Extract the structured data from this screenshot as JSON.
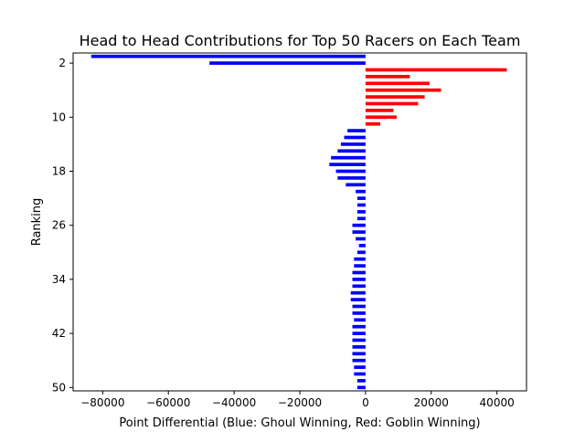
{
  "chart_data": {
    "type": "bar",
    "orientation": "horizontal",
    "title": "Head to Head Contributions for Top 50 Racers on Each Team",
    "xlabel": "Point Differential (Blue: Ghoul Winning, Red: Goblin Winning)",
    "ylabel": "Ranking",
    "xlim": [
      -89000,
      49000
    ],
    "ylim": [
      50.5,
      0.5
    ],
    "x_ticks": [
      -80000,
      -60000,
      -40000,
      -20000,
      0,
      20000,
      40000
    ],
    "x_tick_labels": [
      "−80000",
      "−60000",
      "−40000",
      "−20000",
      "0",
      "20000",
      "40000"
    ],
    "y_ticks": [
      2,
      10,
      18,
      26,
      34,
      42,
      50
    ],
    "y_tick_labels": [
      "2",
      "10",
      "18",
      "26",
      "34",
      "42",
      "50"
    ],
    "grid": false,
    "legend": "none",
    "colors": {
      "positive": "#ff0000",
      "negative": "#0000ff",
      "axis": "#000000"
    },
    "categories": [
      1,
      2,
      3,
      4,
      5,
      6,
      7,
      8,
      9,
      10,
      11,
      12,
      13,
      14,
      15,
      16,
      17,
      18,
      19,
      20,
      21,
      22,
      23,
      24,
      25,
      26,
      27,
      28,
      29,
      30,
      31,
      32,
      33,
      34,
      35,
      36,
      37,
      38,
      39,
      40,
      41,
      42,
      43,
      44,
      45,
      46,
      47,
      48,
      49,
      50
    ],
    "values": [
      -83500,
      -47500,
      43000,
      13500,
      19500,
      23000,
      18000,
      16000,
      8500,
      9500,
      4500,
      -5500,
      -6500,
      -7500,
      -8500,
      -10500,
      -11000,
      -9000,
      -8500,
      -6000,
      -3000,
      -2500,
      -2500,
      -2500,
      -2500,
      -4000,
      -4000,
      -3000,
      -2000,
      -2500,
      -3500,
      -3500,
      -4000,
      -4000,
      -4000,
      -4500,
      -4500,
      -4000,
      -4000,
      -3500,
      -4000,
      -4000,
      -4000,
      -4000,
      -4000,
      -4000,
      -3500,
      -3500,
      -2500,
      -2500
    ]
  }
}
